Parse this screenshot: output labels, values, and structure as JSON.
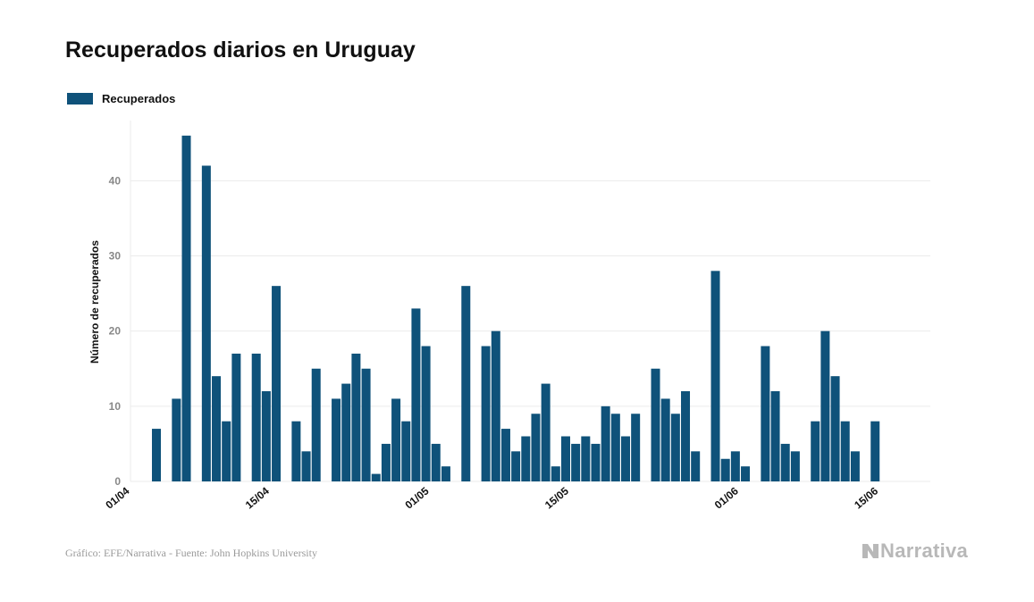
{
  "colors": {
    "bar": "#0f527a",
    "grid": "#ebebeb",
    "brand": "#b8b8b8"
  },
  "legend": {
    "label": "Recuperados"
  },
  "footer": {
    "source": "Gráfico: EFE/Narrativa - Fuente: John Hopkins University",
    "brand": "Narrativa",
    "brand_icon": "narrativa-logo-icon"
  },
  "chart_data": {
    "type": "bar",
    "title": "Recuperados diarios en Uruguay",
    "xlabel": "",
    "ylabel": "Número de recuperados",
    "ylim": [
      0,
      48
    ],
    "yticks": [
      0,
      10,
      20,
      30,
      40
    ],
    "grid": true,
    "legend_position": "top-left",
    "xticks": [
      "01/04",
      "15/04",
      "01/05",
      "15/05",
      "01/06",
      "15/06"
    ],
    "categories": [
      "01/04",
      "02/04",
      "03/04",
      "04/04",
      "05/04",
      "06/04",
      "07/04",
      "08/04",
      "09/04",
      "10/04",
      "11/04",
      "12/04",
      "13/04",
      "14/04",
      "15/04",
      "16/04",
      "17/04",
      "18/04",
      "19/04",
      "20/04",
      "21/04",
      "22/04",
      "23/04",
      "24/04",
      "25/04",
      "26/04",
      "27/04",
      "28/04",
      "29/04",
      "30/04",
      "01/05",
      "02/05",
      "03/05",
      "04/05",
      "05/05",
      "06/05",
      "07/05",
      "08/05",
      "09/05",
      "10/05",
      "11/05",
      "12/05",
      "13/05",
      "14/05",
      "15/05",
      "16/05",
      "17/05",
      "18/05",
      "19/05",
      "20/05",
      "21/05",
      "22/05",
      "23/05",
      "24/05",
      "25/05",
      "26/05",
      "27/05",
      "28/05",
      "29/05",
      "30/05",
      "31/05",
      "01/06",
      "02/06",
      "03/06",
      "04/06",
      "05/06",
      "06/06",
      "07/06",
      "08/06",
      "09/06",
      "10/06",
      "11/06",
      "12/06",
      "13/06",
      "14/06",
      "15/06",
      "16/06"
    ],
    "series": [
      {
        "name": "Recuperados",
        "values": [
          0,
          0,
          0,
          7,
          0,
          11,
          46,
          0,
          42,
          14,
          8,
          17,
          0,
          17,
          12,
          26,
          0,
          8,
          4,
          15,
          0,
          11,
          13,
          17,
          15,
          1,
          5,
          11,
          8,
          23,
          18,
          5,
          2,
          0,
          26,
          0,
          18,
          20,
          7,
          4,
          6,
          9,
          13,
          2,
          6,
          5,
          6,
          5,
          10,
          9,
          6,
          9,
          0,
          15,
          11,
          9,
          12,
          4,
          0,
          28,
          3,
          4,
          2,
          0,
          18,
          12,
          5,
          4,
          0,
          8,
          20,
          14,
          8,
          4,
          0,
          8,
          0
        ]
      }
    ]
  }
}
